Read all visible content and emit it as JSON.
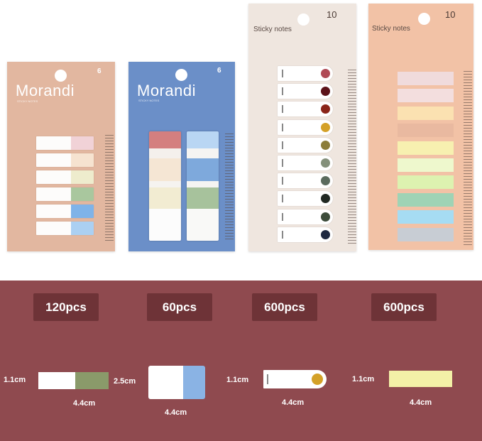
{
  "products": [
    {
      "brand": "Morandi",
      "subtitle": "STICKY NOTES",
      "count": "6",
      "bg": "#e2b7a0",
      "tab_colors": [
        "#f1d2d7",
        "#f6e3d0",
        "#eeeccd",
        "#a9c79e",
        "#7fb3e8",
        "#abd0f2"
      ]
    },
    {
      "brand": "Morandi",
      "subtitle": "STICKY NOTES",
      "count": "6",
      "bg": "#6b8fc8",
      "left_colors": [
        "#d47f7f",
        "#f4f0ec",
        "#f5e6d4",
        "#f5f3f0",
        "#f2ecd2",
        "#fcfcfc"
      ],
      "right_colors": [
        "#b9d6f3",
        "#f5f4f2",
        "#7ea9dc",
        "#f5f4f2",
        "#a7c29c",
        "#f9f9f7"
      ]
    },
    {
      "title": "Sticky notes",
      "count": "10",
      "bg": "#efe6df",
      "dot_colors": [
        "#b04a55",
        "#5c1218",
        "#8a2418",
        "#d4a128",
        "#8b7d3a",
        "#84907a",
        "#5b6b5e",
        "#202822",
        "#3c4c3a",
        "#1e2840"
      ]
    },
    {
      "title": "Sticky notes",
      "count": "10",
      "bg": "#f2c2a6",
      "bar_colors": [
        "#f0dbdc",
        "#f3dede",
        "#fbe1b1",
        "#e9b9a0",
        "#f7f0b0",
        "#eef8cd",
        "#ddf2b0",
        "#9fd3b5",
        "#a6dcf3",
        "#c8cdd4"
      ]
    }
  ],
  "quantities": [
    "120pcs",
    "60pcs",
    "600pcs",
    "600pcs"
  ],
  "dimensions": [
    {
      "height": "1.1cm",
      "width": "4.4cm",
      "color": "#8a9a6a"
    },
    {
      "height": "2.5cm",
      "width": "4.4cm",
      "color": "#8ab3e4"
    },
    {
      "height": "1.1cm",
      "width": "4.4cm",
      "color": "#d4a128"
    },
    {
      "height": "1.1cm",
      "width": "4.4cm",
      "color": "#f3f0a7"
    }
  ],
  "colors": {
    "band": "#8f4a4f",
    "label_bg": "#6e3337"
  }
}
